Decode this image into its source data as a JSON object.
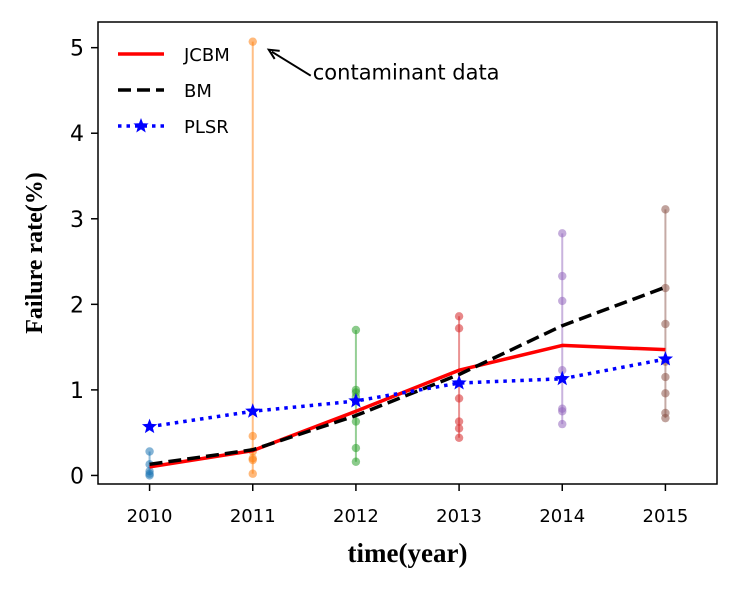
{
  "chart_data": {
    "type": "line",
    "xlabel": "time(year)",
    "ylabel": "Failure rate(%)",
    "xlim": [
      2009.5,
      2015.5
    ],
    "ylim": [
      -0.1,
      5.3
    ],
    "x_ticks": [
      "2010",
      "2011",
      "2012",
      "2013",
      "2014",
      "2015"
    ],
    "y_ticks": [
      "0",
      "1",
      "2",
      "3",
      "4",
      "5"
    ],
    "x": [
      2010,
      2011,
      2012,
      2013,
      2014,
      2015
    ],
    "series": [
      {
        "name": "JCBM",
        "values": [
          0.1,
          0.29,
          0.75,
          1.23,
          1.52,
          1.47
        ],
        "color": "#ff0000",
        "style": "solid"
      },
      {
        "name": "BM",
        "values": [
          0.13,
          0.3,
          0.7,
          1.18,
          1.75,
          2.2
        ],
        "color": "#000000",
        "style": "dashed"
      },
      {
        "name": "PLSR",
        "values": [
          0.57,
          0.75,
          0.87,
          1.08,
          1.13,
          1.36
        ],
        "color": "#0000ff",
        "style": "dotted",
        "marker": "star"
      }
    ],
    "observations": [
      {
        "x": 2010,
        "values": [
          0.0,
          0.02,
          0.05,
          0.13,
          0.28
        ],
        "color": "#1f77b4"
      },
      {
        "x": 2011,
        "values": [
          0.02,
          0.18,
          0.2,
          0.28,
          0.46,
          5.07
        ],
        "color": "#ff7f0e"
      },
      {
        "x": 2012,
        "values": [
          0.16,
          0.32,
          0.63,
          0.92,
          0.97,
          1.0,
          1.7
        ],
        "color": "#2ca02c"
      },
      {
        "x": 2013,
        "values": [
          0.44,
          0.55,
          0.63,
          0.9,
          1.72,
          1.86
        ],
        "color": "#d62728"
      },
      {
        "x": 2014,
        "values": [
          0.6,
          0.75,
          0.78,
          1.23,
          2.04,
          2.33,
          2.83
        ],
        "color": "#9467bd"
      },
      {
        "x": 2015,
        "values": [
          0.67,
          0.73,
          0.96,
          1.15,
          1.33,
          1.77,
          2.19,
          3.11
        ],
        "color": "#8c564b"
      }
    ],
    "annotation": {
      "text": "contaminant data",
      "x": 2011,
      "y": 5.07
    },
    "legend_position": "top-left",
    "grid": false
  }
}
